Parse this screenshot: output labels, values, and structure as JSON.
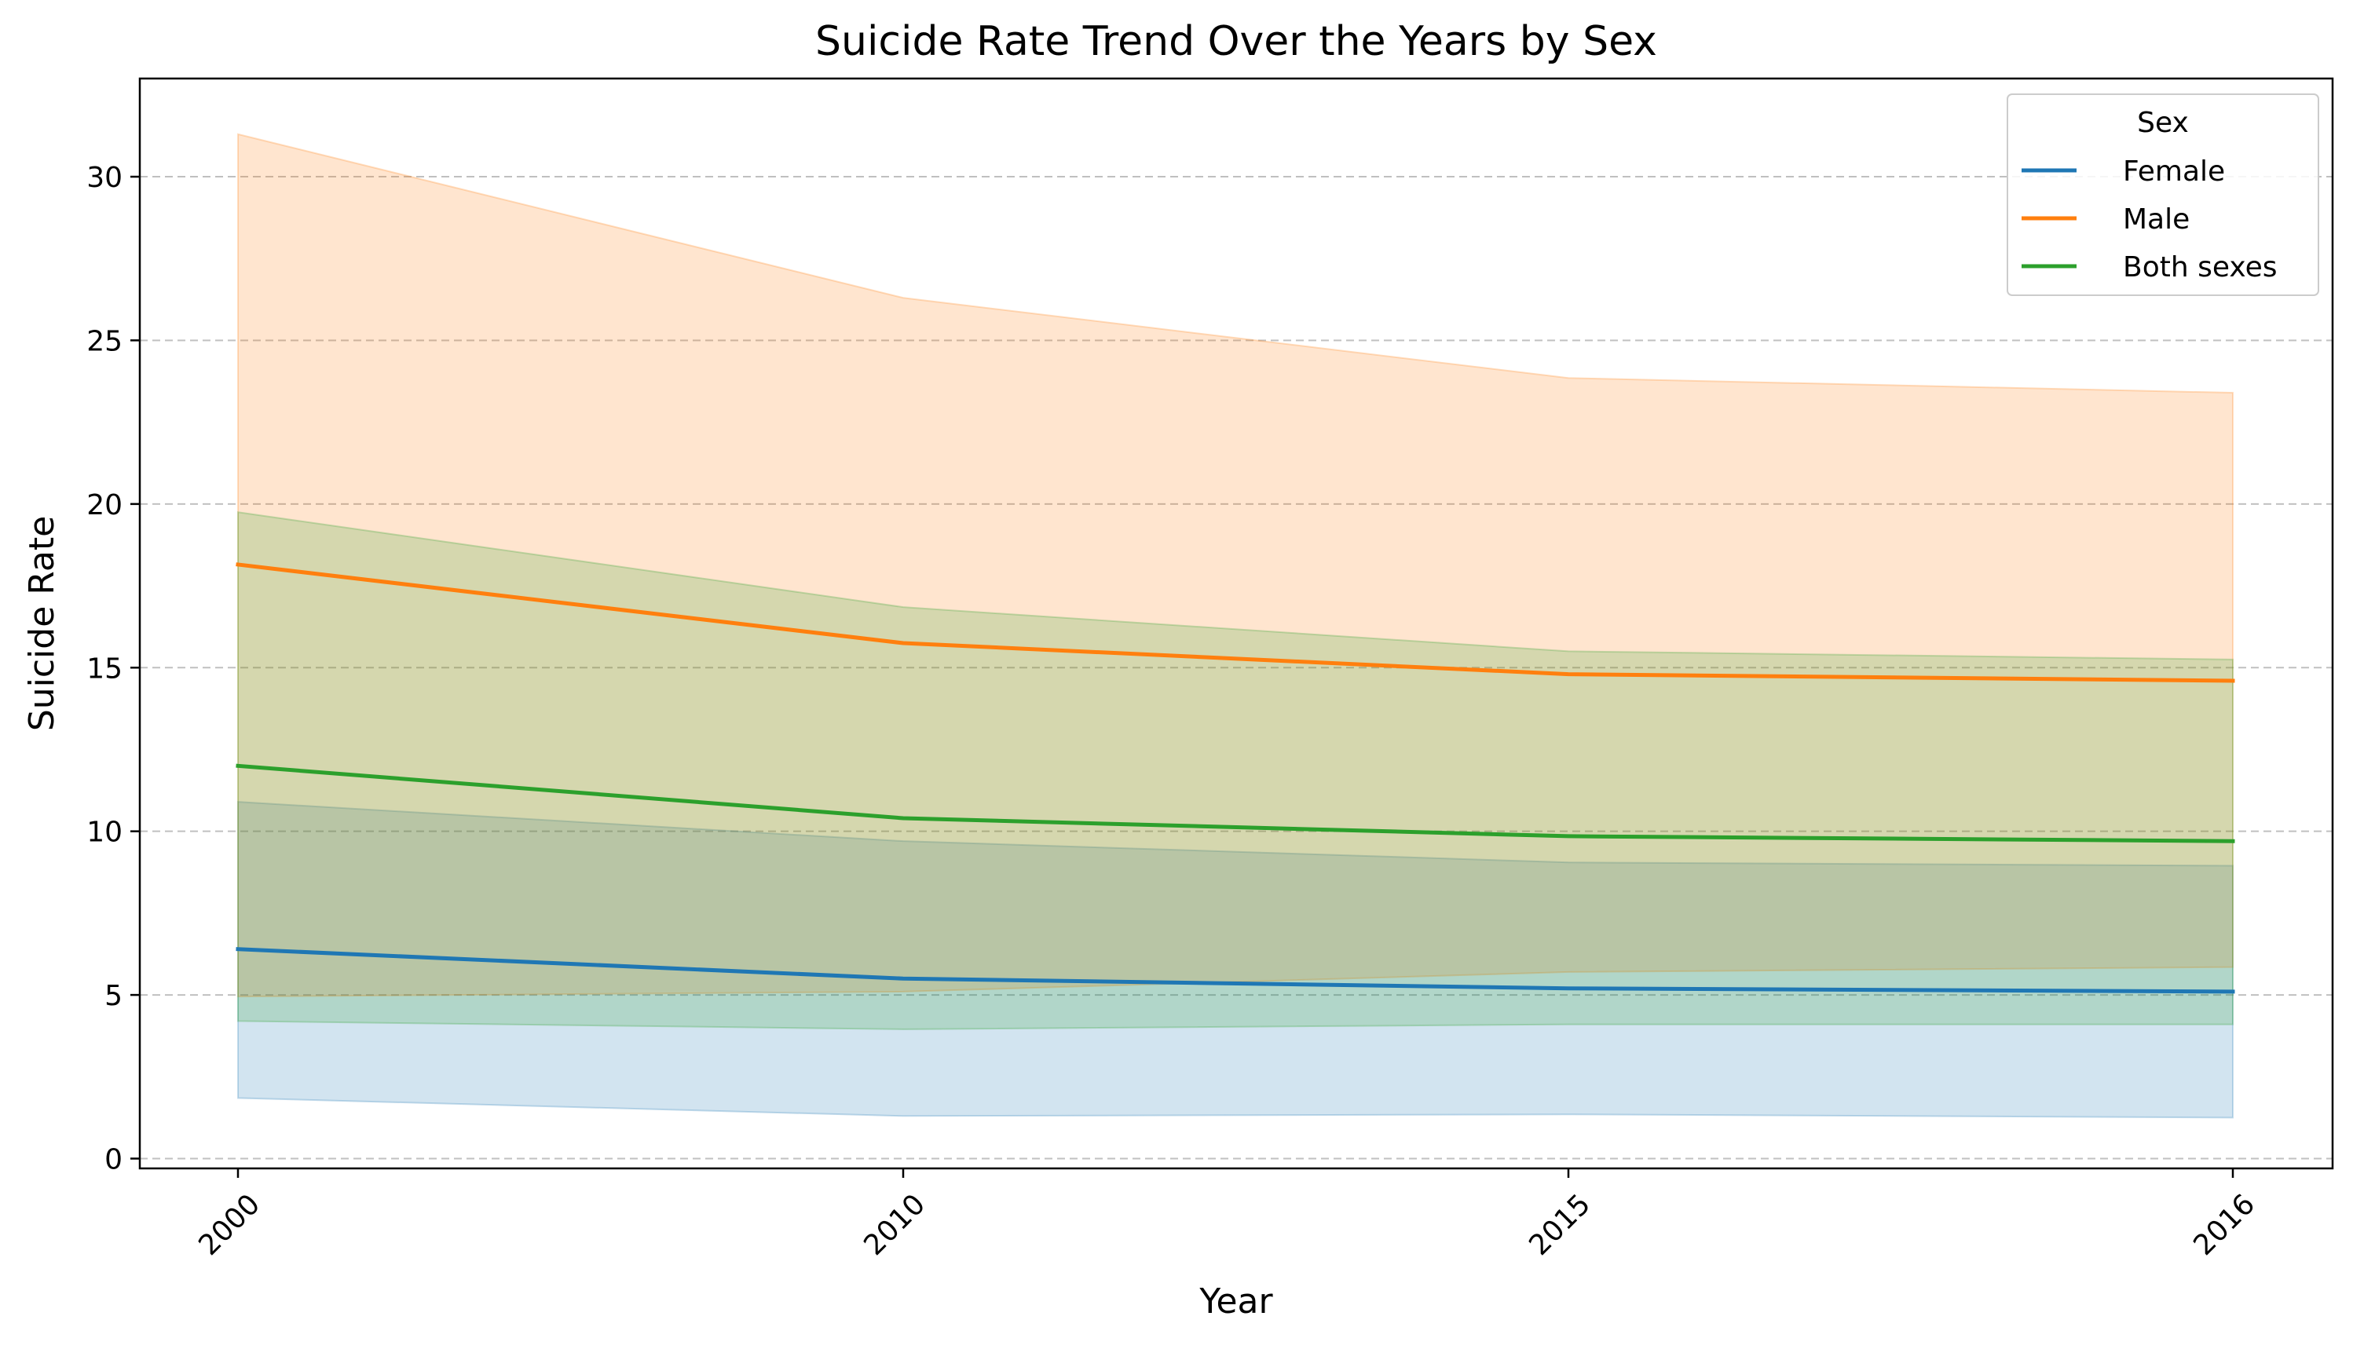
{
  "chart_data": {
    "type": "line",
    "title": "Suicide Rate Trend Over the Years by Sex",
    "xlabel": "Year",
    "ylabel": "Suicide Rate",
    "x": [
      "2000",
      "2010",
      "2015",
      "2016"
    ],
    "ylim": [
      -0.3,
      33.0
    ],
    "yticks": [
      "0",
      "5",
      "10",
      "15",
      "20",
      "25",
      "30"
    ],
    "grid": "horizontal dashed",
    "legend": {
      "title": "Sex",
      "position": "top-right"
    },
    "series": [
      {
        "name": "Female",
        "color": "#1f77b4",
        "values": [
          6.4,
          5.5,
          5.2,
          5.1
        ],
        "band_low": [
          1.85,
          1.3,
          1.35,
          1.25
        ],
        "band_high": [
          10.9,
          9.7,
          9.05,
          8.95
        ]
      },
      {
        "name": "Male",
        "color": "#ff7f0e",
        "values": [
          18.15,
          15.75,
          14.8,
          14.6
        ],
        "band_low": [
          4.95,
          5.1,
          5.7,
          5.85
        ],
        "band_high": [
          31.3,
          26.3,
          23.85,
          23.4
        ]
      },
      {
        "name": "Both sexes",
        "color": "#2ca02c",
        "values": [
          12.0,
          10.4,
          9.85,
          9.7
        ],
        "band_low": [
          4.2,
          3.95,
          4.1,
          4.1
        ],
        "band_high": [
          19.75,
          16.85,
          15.5,
          15.25
        ]
      }
    ]
  }
}
